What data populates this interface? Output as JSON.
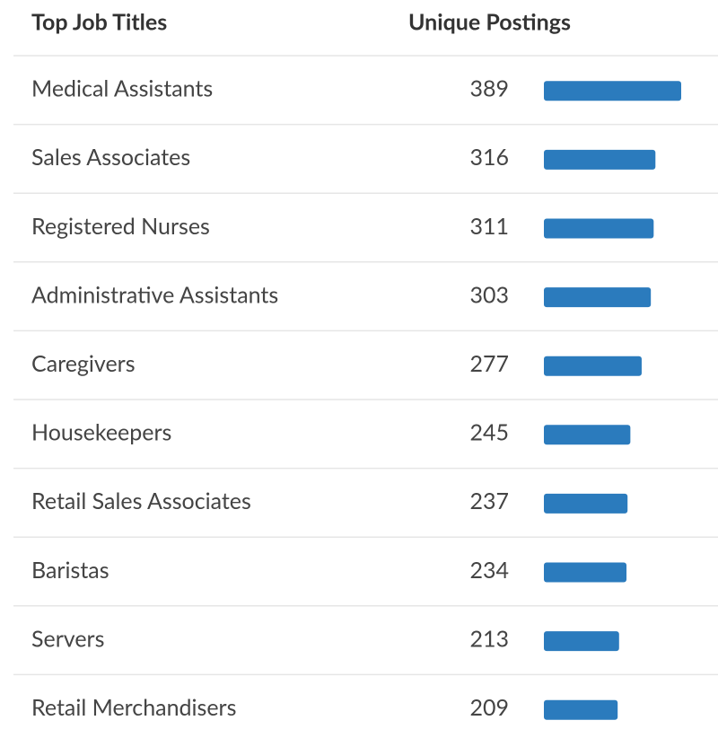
{
  "table": {
    "headers": [
      "Top Job Titles",
      "Unique Postings"
    ],
    "rows": [
      [
        "Medical Assistants",
        389
      ],
      [
        "Sales Associates",
        316
      ],
      [
        "Registered Nurses",
        311
      ],
      [
        "Administrative Assistants",
        303
      ],
      [
        "Caregivers",
        277
      ],
      [
        "Housekeepers",
        245
      ],
      [
        "Retail Sales Associates",
        237
      ],
      [
        "Baristas",
        234
      ],
      [
        "Servers",
        213
      ],
      [
        "Retail Merchandisers",
        209
      ]
    ],
    "bar_color": "#2b7bbd"
  }
}
